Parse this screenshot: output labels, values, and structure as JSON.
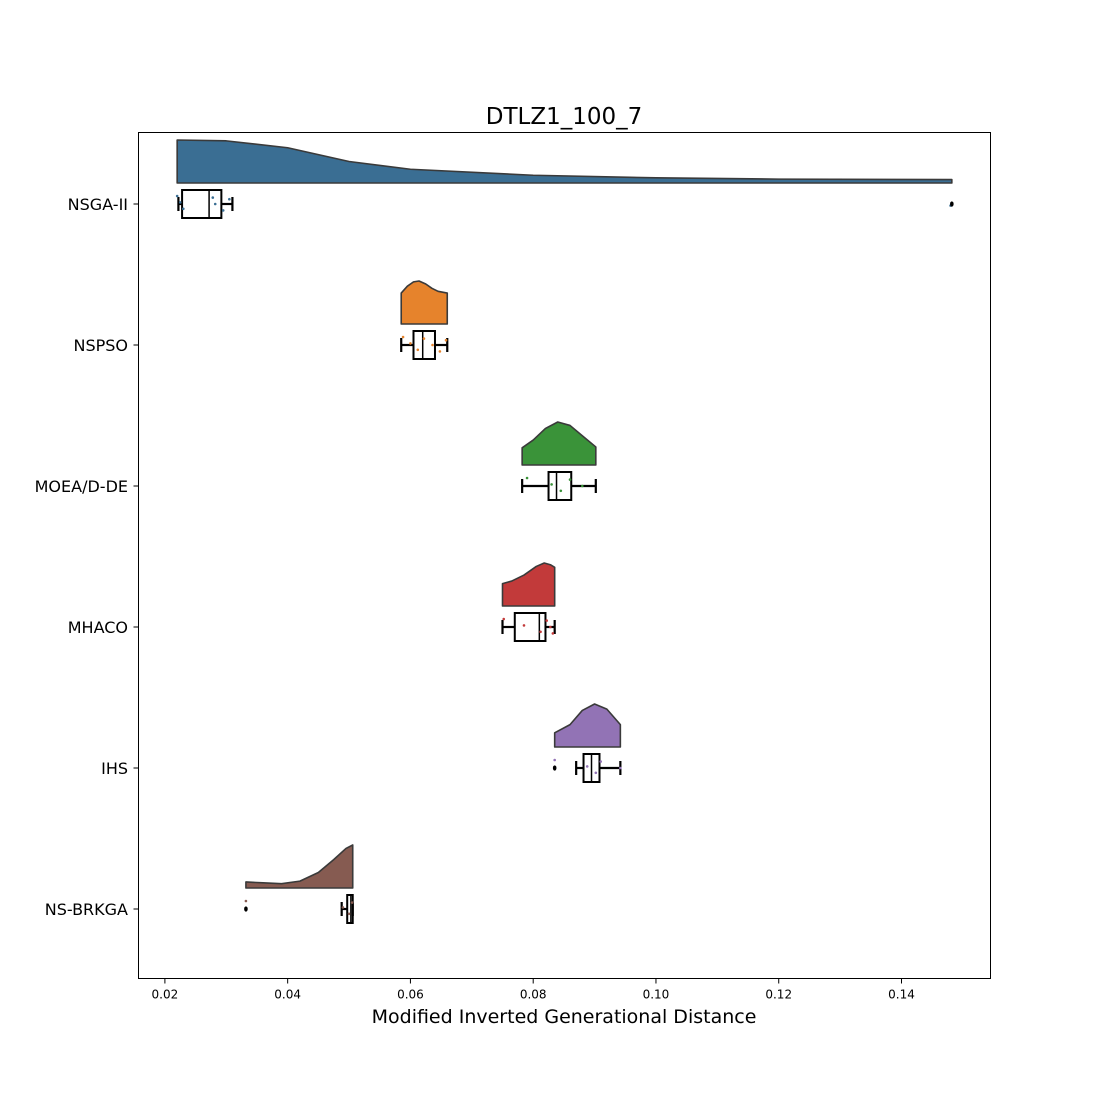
{
  "chart_data": {
    "type": "raincloud",
    "orientation": "horizontal",
    "title": "DTLZ1_100_7",
    "xlabel": "Modified Inverted Generational Distance",
    "ylabel": "",
    "xlim": [
      0.0157,
      0.1545
    ],
    "xticks": [
      0.02,
      0.04,
      0.06,
      0.08,
      0.1,
      0.12,
      0.14
    ],
    "xtick_labels": [
      "0.02",
      "0.04",
      "0.06",
      "0.08",
      "0.10",
      "0.12",
      "0.14"
    ],
    "grid": false,
    "legend": "none",
    "series": [
      {
        "name": "NSGA-II",
        "color": "#3a6e93",
        "box": {
          "whislo": 0.0222,
          "q1": 0.0228,
          "median": 0.0272,
          "q3": 0.0292,
          "whishi": 0.031
        },
        "outliers": [
          0.1482
        ],
        "points": [
          0.022,
          0.0225,
          0.023,
          0.0278,
          0.0282,
          0.0295,
          0.0305,
          0.148
        ],
        "density_range": [
          0.022,
          0.1482
        ],
        "density": [
          [
            0.022,
            1.0
          ],
          [
            0.03,
            0.98
          ],
          [
            0.04,
            0.82
          ],
          [
            0.05,
            0.5
          ],
          [
            0.06,
            0.32
          ],
          [
            0.08,
            0.18
          ],
          [
            0.1,
            0.12
          ],
          [
            0.12,
            0.09
          ],
          [
            0.1482,
            0.08
          ]
        ]
      },
      {
        "name": "NSPSO",
        "color": "#e6832c",
        "box": {
          "whislo": 0.0585,
          "q1": 0.0605,
          "median": 0.062,
          "q3": 0.064,
          "whishi": 0.066
        },
        "outliers": [],
        "points": [
          0.0588,
          0.06,
          0.0612,
          0.0622,
          0.0636,
          0.0648,
          0.0658
        ],
        "density_range": [
          0.0585,
          0.066
        ],
        "density": [
          [
            0.0585,
            0.72
          ],
          [
            0.0595,
            0.88
          ],
          [
            0.0605,
            0.98
          ],
          [
            0.0614,
            1.0
          ],
          [
            0.0625,
            0.93
          ],
          [
            0.0635,
            0.83
          ],
          [
            0.0645,
            0.76
          ],
          [
            0.066,
            0.72
          ]
        ]
      },
      {
        "name": "MOEA/D-DE",
        "color": "#3a9339",
        "box": {
          "whislo": 0.0782,
          "q1": 0.0825,
          "median": 0.0838,
          "q3": 0.0862,
          "whishi": 0.0902
        },
        "outliers": [],
        "points": [
          0.079,
          0.083,
          0.0845,
          0.086,
          0.088
        ],
        "density_range": [
          0.0782,
          0.0902
        ],
        "density": [
          [
            0.0782,
            0.4
          ],
          [
            0.08,
            0.58
          ],
          [
            0.082,
            0.85
          ],
          [
            0.084,
            1.0
          ],
          [
            0.086,
            0.92
          ],
          [
            0.088,
            0.68
          ],
          [
            0.0902,
            0.42
          ]
        ]
      },
      {
        "name": "MHACO",
        "color": "#c23a3a",
        "box": {
          "whislo": 0.075,
          "q1": 0.077,
          "median": 0.081,
          "q3": 0.082,
          "whishi": 0.0835
        },
        "outliers": [],
        "points": [
          0.0752,
          0.0785,
          0.0812,
          0.0822,
          0.0828,
          0.0832
        ],
        "density_range": [
          0.075,
          0.0835
        ],
        "density": [
          [
            0.075,
            0.52
          ],
          [
            0.0765,
            0.58
          ],
          [
            0.0785,
            0.72
          ],
          [
            0.0805,
            0.92
          ],
          [
            0.0818,
            1.0
          ],
          [
            0.0828,
            0.96
          ],
          [
            0.0835,
            0.9
          ]
        ]
      },
      {
        "name": "IHS",
        "color": "#9273b5",
        "box": {
          "whislo": 0.087,
          "q1": 0.0882,
          "median": 0.0895,
          "q3": 0.0908,
          "whishi": 0.0942
        },
        "outliers": [
          0.0835
        ],
        "points": [
          0.0835,
          0.0888,
          0.0902,
          0.091,
          0.0942
        ],
        "density_range": [
          0.0835,
          0.0942
        ],
        "density": [
          [
            0.0835,
            0.33
          ],
          [
            0.086,
            0.52
          ],
          [
            0.088,
            0.85
          ],
          [
            0.09,
            1.0
          ],
          [
            0.092,
            0.88
          ],
          [
            0.0942,
            0.52
          ]
        ]
      },
      {
        "name": "NS-BRKGA",
        "color": "#865b51",
        "box": {
          "whislo": 0.0488,
          "q1": 0.0497,
          "median": 0.0503,
          "q3": 0.0506,
          "whishi": 0.0506
        },
        "outliers": [
          0.0332
        ],
        "points": [
          0.0332,
          0.049,
          0.05,
          0.0505
        ],
        "density_range": [
          0.0332,
          0.0506
        ],
        "density": [
          [
            0.0332,
            0.14
          ],
          [
            0.036,
            0.12
          ],
          [
            0.039,
            0.1
          ],
          [
            0.042,
            0.16
          ],
          [
            0.045,
            0.36
          ],
          [
            0.0475,
            0.66
          ],
          [
            0.0495,
            0.92
          ],
          [
            0.0506,
            1.0
          ]
        ]
      }
    ]
  }
}
